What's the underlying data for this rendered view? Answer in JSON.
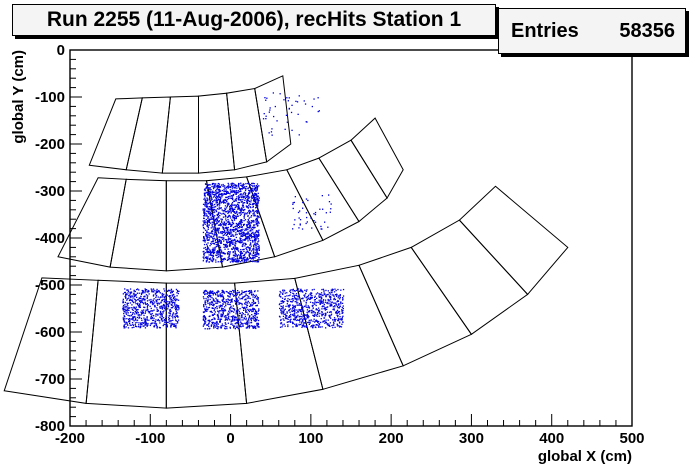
{
  "chart_data": {
    "type": "scatter",
    "title": "Run 2255 (11-Aug-2006), recHits Station 1",
    "xlabel": "global X (cm)",
    "ylabel": "global Y (cm)",
    "xlim": [
      -200,
      500
    ],
    "ylim": [
      -800,
      0
    ],
    "x_ticks": [
      -200,
      -100,
      0,
      100,
      200,
      300,
      400,
      500
    ],
    "y_ticks": [
      -800,
      -700,
      -600,
      -500,
      -400,
      -300,
      -200,
      -100,
      0
    ],
    "grid": false,
    "legend": "none",
    "stats": {
      "label": "Entries",
      "value": "58356"
    },
    "colors": {
      "hits": "#0000dd",
      "chambers": "#000000",
      "frame": "#000000"
    },
    "chambers": [
      [
        [
          -176,
          -245
        ],
        [
          -130,
          -255
        ],
        [
          -110,
          -102
        ],
        [
          -143,
          -104
        ]
      ],
      [
        [
          -130,
          -255
        ],
        [
          -85,
          -262
        ],
        [
          -75,
          -100
        ],
        [
          -110,
          -102
        ]
      ],
      [
        [
          -85,
          -262
        ],
        [
          -40,
          -262
        ],
        [
          -40,
          -98
        ],
        [
          -75,
          -100
        ]
      ],
      [
        [
          -40,
          -262
        ],
        [
          5,
          -255
        ],
        [
          -5,
          -92
        ],
        [
          -40,
          -98
        ]
      ],
      [
        [
          5,
          -255
        ],
        [
          45,
          -238
        ],
        [
          30,
          -82
        ],
        [
          -5,
          -92
        ]
      ],
      [
        [
          45,
          -238
        ],
        [
          75,
          -200
        ],
        [
          65,
          -55
        ],
        [
          30,
          -82
        ]
      ],
      [
        [
          -215,
          -440
        ],
        [
          -150,
          -462
        ],
        [
          -130,
          -275
        ],
        [
          -165,
          -272
        ]
      ],
      [
        [
          -150,
          -462
        ],
        [
          -80,
          -470
        ],
        [
          -80,
          -278
        ],
        [
          -130,
          -275
        ]
      ],
      [
        [
          -80,
          -470
        ],
        [
          -10,
          -462
        ],
        [
          -30,
          -278
        ],
        [
          -80,
          -278
        ]
      ],
      [
        [
          -10,
          -462
        ],
        [
          55,
          -440
        ],
        [
          20,
          -270
        ],
        [
          -30,
          -278
        ]
      ],
      [
        [
          55,
          -440
        ],
        [
          115,
          -405
        ],
        [
          70,
          -255
        ],
        [
          20,
          -270
        ]
      ],
      [
        [
          115,
          -405
        ],
        [
          160,
          -365
        ],
        [
          110,
          -230
        ],
        [
          70,
          -255
        ]
      ],
      [
        [
          160,
          -365
        ],
        [
          195,
          -315
        ],
        [
          150,
          -192
        ],
        [
          110,
          -230
        ]
      ],
      [
        [
          195,
          -315
        ],
        [
          215,
          -255
        ],
        [
          180,
          -145
        ],
        [
          150,
          -192
        ]
      ],
      [
        [
          -282,
          -725
        ],
        [
          -180,
          -752
        ],
        [
          -165,
          -490
        ],
        [
          -235,
          -485
        ]
      ],
      [
        [
          -180,
          -752
        ],
        [
          -80,
          -762
        ],
        [
          -80,
          -496
        ],
        [
          -165,
          -490
        ]
      ],
      [
        [
          -80,
          -762
        ],
        [
          20,
          -752
        ],
        [
          5,
          -496
        ],
        [
          -80,
          -496
        ]
      ],
      [
        [
          20,
          -752
        ],
        [
          115,
          -722
        ],
        [
          80,
          -486
        ],
        [
          5,
          -496
        ]
      ],
      [
        [
          115,
          -722
        ],
        [
          215,
          -672
        ],
        [
          160,
          -458
        ],
        [
          80,
          -486
        ]
      ],
      [
        [
          215,
          -672
        ],
        [
          300,
          -605
        ],
        [
          225,
          -420
        ],
        [
          160,
          -458
        ]
      ],
      [
        [
          300,
          -605
        ],
        [
          370,
          -520
        ],
        [
          285,
          -362
        ],
        [
          225,
          -420
        ]
      ],
      [
        [
          370,
          -520
        ],
        [
          420,
          -420
        ],
        [
          330,
          -290
        ],
        [
          285,
          -362
        ]
      ]
    ],
    "hit_regions": [
      {
        "name": "station1-ring2-chamber",
        "x": [
          -35,
          35
        ],
        "y": [
          -450,
          -282
        ],
        "density": "high"
      },
      {
        "name": "station1-ring3-left",
        "x": [
          -135,
          -65
        ],
        "y": [
          -590,
          -507
        ],
        "density": "medium"
      },
      {
        "name": "station1-ring3-center",
        "x": [
          -35,
          35
        ],
        "y": [
          -592,
          -510
        ],
        "density": "medium"
      },
      {
        "name": "station1-ring3-right",
        "x": [
          60,
          140
        ],
        "y": [
          -590,
          -507
        ],
        "density": "medium"
      },
      {
        "name": "station1-ring2-sparse",
        "x": [
          75,
          125
        ],
        "y": [
          -380,
          -305
        ],
        "density": "low"
      },
      {
        "name": "station1-ring1-sparse",
        "x": [
          40,
          110
        ],
        "y": [
          -185,
          -90
        ],
        "density": "low"
      }
    ]
  }
}
